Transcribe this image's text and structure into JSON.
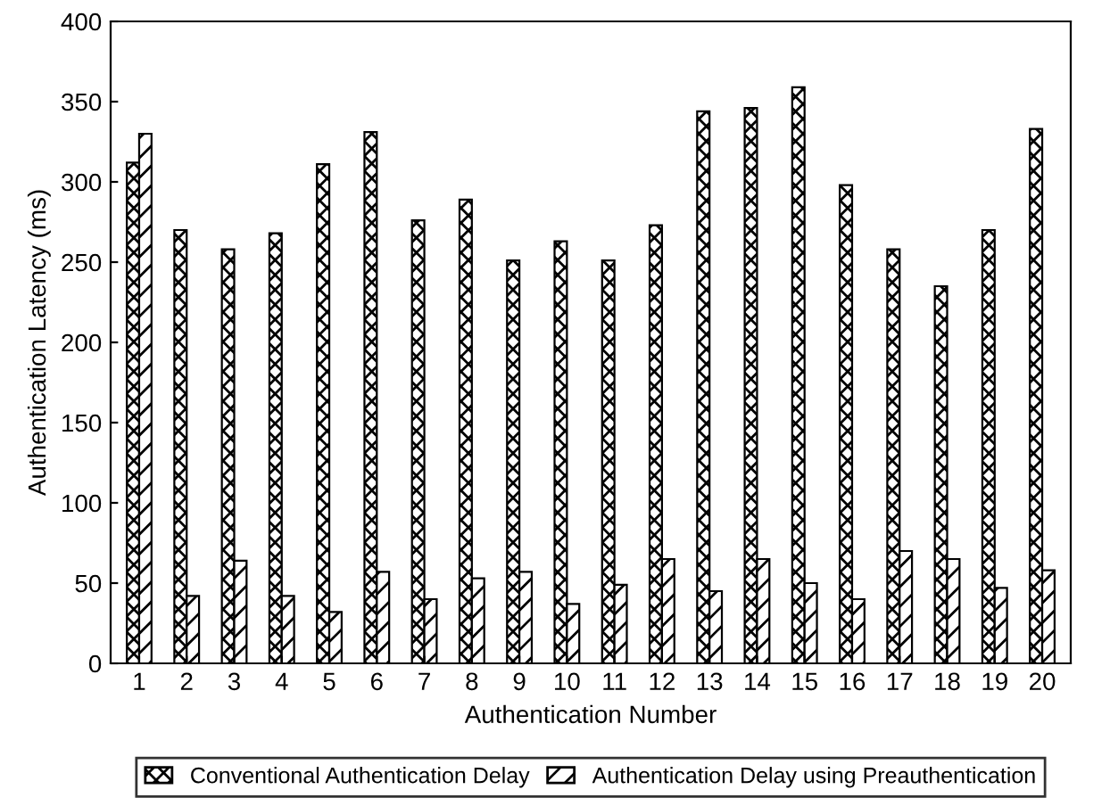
{
  "chart_data": {
    "type": "bar",
    "xlabel": "Authentication Number",
    "ylabel": "Authentication Latency (ms)",
    "categories": [
      "1",
      "2",
      "3",
      "4",
      "5",
      "6",
      "7",
      "8",
      "9",
      "10",
      "11",
      "12",
      "13",
      "14",
      "15",
      "16",
      "17",
      "18",
      "19",
      "20"
    ],
    "series": [
      {
        "name": "Conventional Authentication Delay",
        "color": "#000000",
        "values": [
          312,
          270,
          258,
          268,
          311,
          331,
          276,
          289,
          251,
          263,
          251,
          273,
          344,
          346,
          359,
          298,
          258,
          235,
          270,
          333
        ]
      },
      {
        "name": "Authentication Delay using Preauthentication",
        "color": "#000000",
        "values": [
          330,
          42,
          64,
          42,
          32,
          57,
          40,
          53,
          57,
          37,
          49,
          65,
          45,
          65,
          50,
          40,
          70,
          65,
          47,
          58
        ]
      }
    ],
    "ylim": [
      0,
      400
    ],
    "yticks": [
      0,
      50,
      100,
      150,
      200,
      250,
      300,
      350,
      400
    ],
    "grid": false,
    "legend": "bottom"
  }
}
